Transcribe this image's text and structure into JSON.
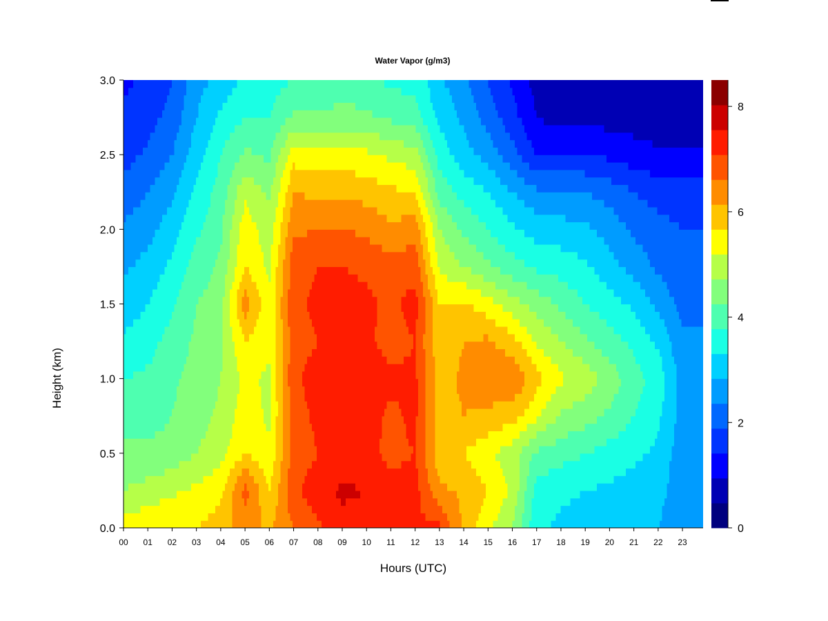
{
  "chart_data": {
    "type": "heatmap",
    "title": "Water Vapor (g/m3)",
    "xlabel": "Hours (UTC)",
    "ylabel": "Height (km)",
    "xlim": [
      0,
      23.85
    ],
    "ylim": [
      0.0,
      3.0
    ],
    "x_ticks": [
      "00",
      "01",
      "02",
      "03",
      "04",
      "05",
      "06",
      "07",
      "08",
      "09",
      "10",
      "11",
      "12",
      "13",
      "14",
      "15",
      "16",
      "17",
      "18",
      "19",
      "20",
      "21",
      "22",
      "23"
    ],
    "y_ticks": [
      "0.0",
      "0.5",
      "1.0",
      "1.5",
      "2.0",
      "2.5",
      "3.0"
    ],
    "colorbar": {
      "min": 0,
      "max": 8.5,
      "step": 0.5,
      "tick_values": [
        0,
        2,
        4,
        6,
        8
      ],
      "tick_labels": [
        "0",
        "2",
        "4",
        "6",
        "8"
      ],
      "colors": [
        "#00007f",
        "#0000b4",
        "#0000ff",
        "#0034ff",
        "#0068ff",
        "#009cff",
        "#00d0ff",
        "#1affe4",
        "#4effb0",
        "#82ff7c",
        "#b6ff48",
        "#ffff00",
        "#ffc400",
        "#ff8c00",
        "#ff5400",
        "#ff1c00",
        "#cc0000",
        "#8b0000"
      ]
    },
    "heights_km": [
      0.0,
      0.25,
      0.5,
      0.75,
      1.0,
      1.25,
      1.5,
      1.75,
      2.0,
      2.25,
      2.5,
      2.75,
      3.0
    ],
    "hours": [
      0,
      1,
      2,
      3,
      4,
      5,
      6,
      7,
      8,
      9,
      10,
      11,
      12,
      13,
      14,
      15,
      16,
      17,
      18,
      19,
      20,
      21,
      22,
      23
    ],
    "values_by_hour": [
      [
        5.8,
        5.0,
        4.6,
        4.3,
        4.0,
        3.6,
        3.2,
        2.9,
        2.6,
        2.2,
        1.8,
        1.6,
        1.4
      ],
      [
        5.9,
        5.2,
        4.6,
        4.3,
        4.1,
        3.8,
        3.5,
        3.2,
        2.8,
        2.5,
        2.1,
        1.8,
        1.6
      ],
      [
        6.0,
        5.4,
        4.7,
        4.5,
        4.4,
        4.2,
        3.9,
        3.6,
        3.3,
        2.9,
        2.5,
        2.2,
        2.0
      ],
      [
        6.0,
        5.6,
        5.0,
        4.8,
        4.7,
        4.6,
        4.5,
        4.2,
        3.9,
        3.6,
        3.3,
        3.0,
        2.8
      ],
      [
        6.2,
        5.9,
        5.3,
        5.1,
        5.0,
        4.9,
        4.8,
        4.6,
        4.4,
        4.2,
        4.0,
        3.6,
        3.2
      ],
      [
        6.8,
        7.2,
        6.0,
        5.8,
        5.6,
        6.0,
        6.8,
        6.0,
        5.8,
        5.4,
        4.6,
        4.0,
        3.6
      ],
      [
        6.4,
        6.0,
        5.6,
        5.4,
        5.4,
        5.6,
        5.6,
        5.4,
        5.2,
        4.9,
        4.4,
        4.0,
        3.8
      ],
      [
        7.0,
        7.4,
        7.2,
        7.3,
        7.4,
        7.3,
        7.4,
        7.3,
        6.9,
        6.5,
        5.8,
        4.6,
        4.0
      ],
      [
        7.4,
        7.8,
        7.5,
        7.6,
        7.7,
        7.5,
        7.6,
        7.5,
        7.0,
        6.4,
        5.7,
        4.6,
        4.0
      ],
      [
        7.8,
        8.1,
        7.6,
        7.7,
        7.9,
        7.6,
        7.7,
        7.5,
        7.0,
        6.4,
        5.7,
        4.7,
        4.2
      ],
      [
        7.8,
        8.0,
        7.6,
        7.7,
        8.0,
        7.6,
        7.6,
        7.4,
        6.9,
        6.3,
        5.6,
        4.6,
        4.1
      ],
      [
        7.6,
        7.6,
        7.4,
        7.4,
        7.6,
        7.3,
        7.4,
        7.2,
        6.6,
        6.1,
        5.4,
        4.4,
        3.9
      ],
      [
        7.6,
        7.7,
        7.5,
        7.6,
        7.6,
        7.5,
        7.7,
        7.3,
        6.8,
        6.0,
        5.2,
        4.2,
        3.8
      ],
      [
        7.6,
        6.6,
        6.2,
        6.3,
        6.3,
        6.1,
        6.0,
        5.4,
        5.0,
        4.3,
        3.8,
        3.4,
        3.1
      ],
      [
        6.4,
        6.4,
        6.0,
        6.5,
        6.6,
        6.5,
        6.1,
        5.0,
        4.4,
        3.8,
        3.2,
        2.9,
        2.6
      ],
      [
        5.6,
        6.0,
        5.6,
        6.4,
        6.8,
        6.6,
        5.7,
        4.6,
        4.0,
        3.5,
        2.8,
        2.3,
        2.0
      ],
      [
        5.0,
        5.4,
        5.2,
        6.2,
        7.0,
        6.2,
        5.2,
        4.2,
        3.6,
        3.0,
        2.2,
        1.7,
        1.4
      ],
      [
        3.6,
        3.8,
        4.4,
        5.6,
        6.2,
        5.4,
        4.8,
        3.9,
        3.3,
        2.6,
        1.5,
        1.0,
        0.8
      ],
      [
        3.4,
        3.6,
        4.2,
        4.9,
        5.6,
        5.0,
        4.4,
        3.8,
        3.2,
        2.6,
        1.5,
        0.8,
        0.6
      ],
      [
        3.3,
        3.5,
        4.0,
        4.7,
        5.3,
        4.6,
        4.0,
        3.6,
        3.1,
        2.5,
        1.5,
        0.9,
        0.6
      ],
      [
        3.2,
        3.4,
        3.8,
        4.4,
        4.8,
        4.2,
        3.7,
        3.2,
        2.8,
        2.3,
        1.4,
        0.8,
        0.6
      ],
      [
        3.1,
        3.3,
        3.6,
        4.0,
        4.2,
        3.9,
        3.4,
        2.8,
        2.4,
        2.0,
        1.2,
        0.8,
        0.6
      ],
      [
        3.0,
        3.2,
        3.4,
        3.6,
        3.8,
        3.4,
        2.9,
        2.4,
        2.2,
        1.8,
        1.1,
        0.7,
        0.6
      ],
      [
        2.6,
        2.6,
        2.7,
        2.8,
        2.8,
        2.6,
        2.3,
        2.1,
        2.0,
        1.7,
        1.1,
        0.7,
        0.6
      ]
    ]
  }
}
